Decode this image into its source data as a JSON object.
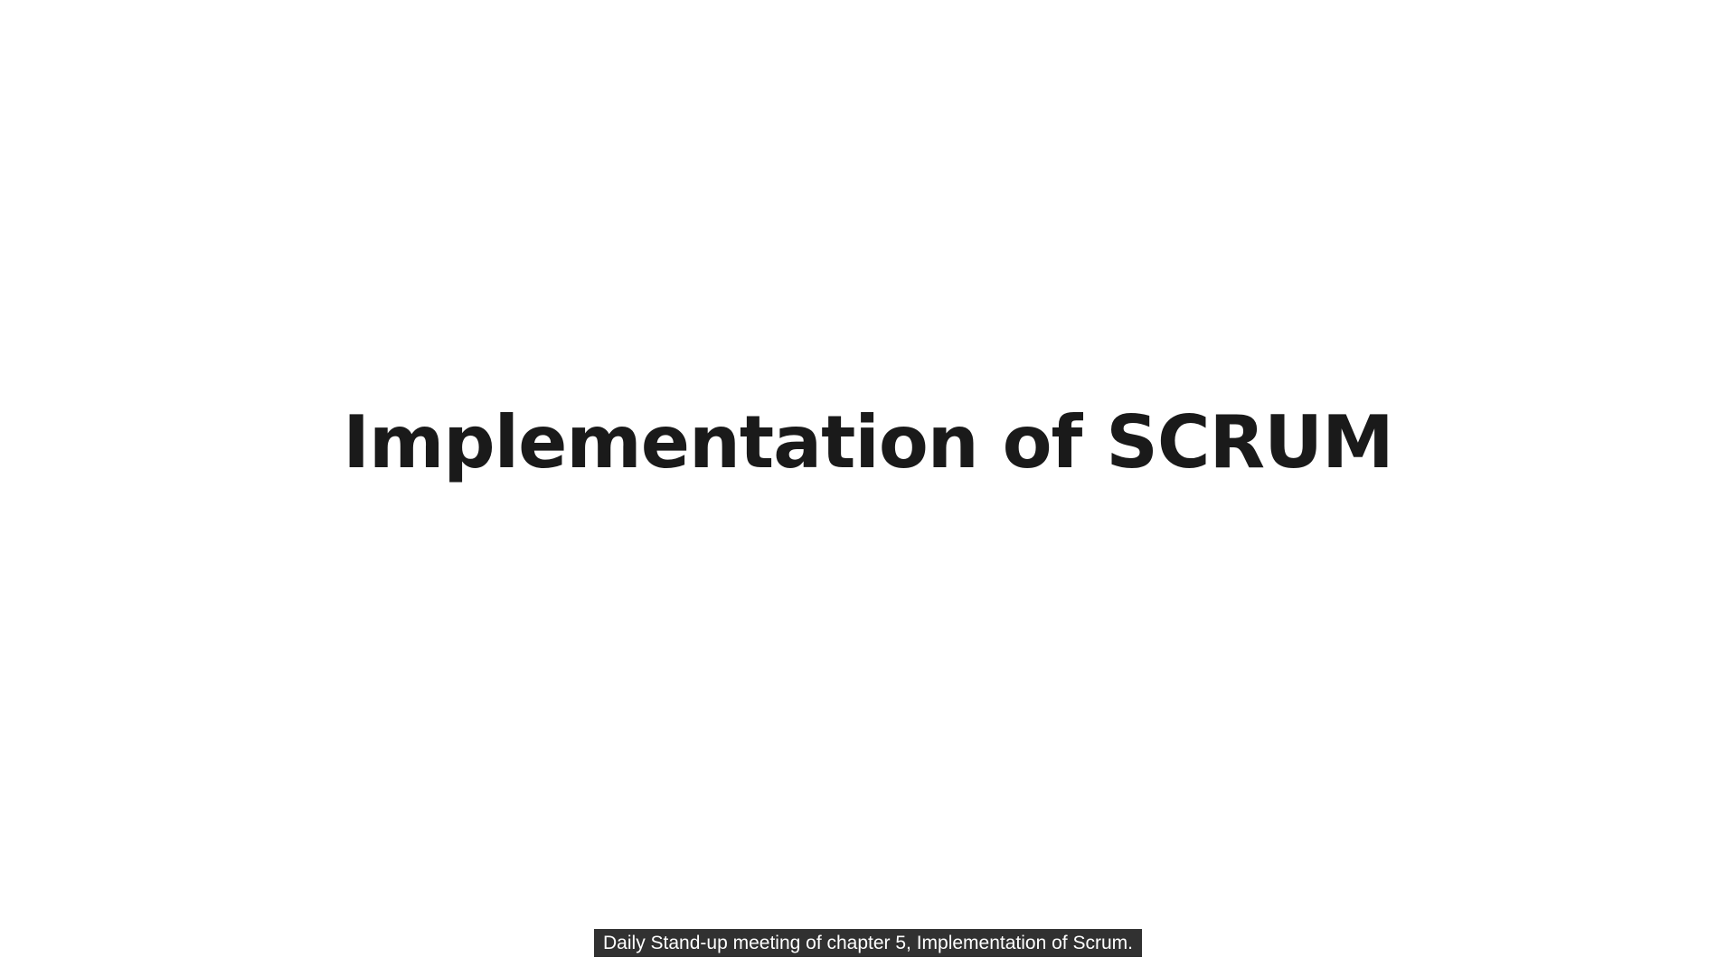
{
  "slide": {
    "title": "Implementation of SCRUM"
  },
  "caption": {
    "text": "Daily Stand-up meeting of chapter 5, Implementation of Scrum."
  },
  "colors": {
    "background": "#fefefe",
    "title_text": "#1a1a1a",
    "caption_background": "#141414",
    "caption_text": "#ffffff"
  }
}
